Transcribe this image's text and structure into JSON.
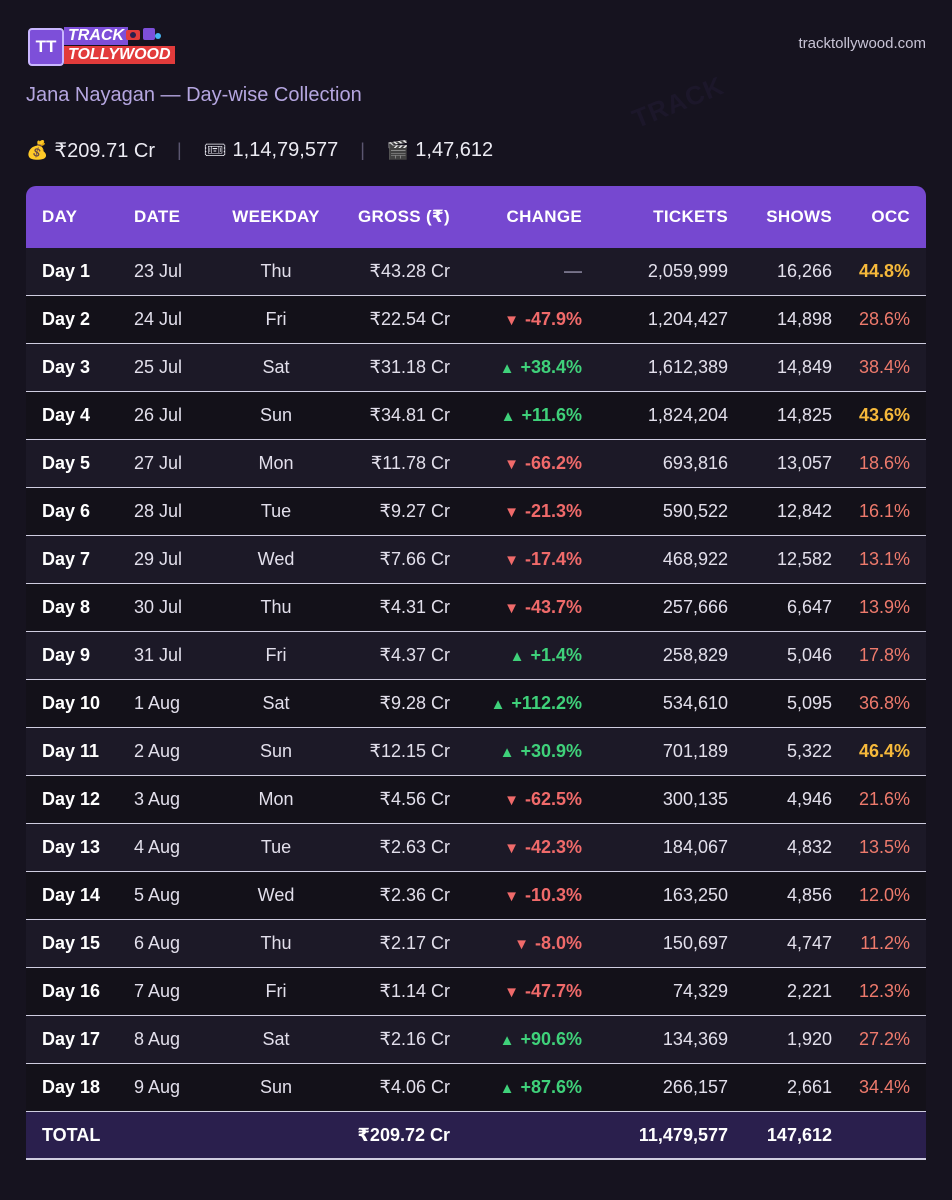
{
  "brand": {
    "logo_mark": "TT",
    "logo_top": "TRACK",
    "logo_bottom": "TOLLYWOOD",
    "url": "tracktollywood.com"
  },
  "subtitle": "Jana Nayagan — Day-wise Collection",
  "summary": {
    "gross_icon": "money-bag-icon",
    "gross": "₹209.71 Cr",
    "tickets_icon": "ticket-icon",
    "tickets": "1,14,79,577",
    "shows_icon": "clapperboard-icon",
    "shows": "1,47,612"
  },
  "colors": {
    "header_bg": "#7648d0",
    "positive": "#3fd17a",
    "negative": "#f06a6a",
    "occ_high": "#f6b93b",
    "occ_low": "#ee7a6c"
  },
  "table": {
    "headers": [
      "DAY",
      "DATE",
      "WEEKDAY",
      "GROSS (₹)",
      "CHANGE",
      "TICKETS",
      "SHOWS",
      "OCC"
    ],
    "rows": [
      {
        "day": "Day 1",
        "date": "23 Jul",
        "weekday": "Thu",
        "gross": "₹43.28 Cr",
        "change": "—",
        "dir": "flat",
        "tickets": "2,059,999",
        "shows": "16,266",
        "occ": "44.8%",
        "occ_level": "high"
      },
      {
        "day": "Day 2",
        "date": "24 Jul",
        "weekday": "Fri",
        "gross": "₹22.54 Cr",
        "change": "-47.9%",
        "dir": "down",
        "tickets": "1,204,427",
        "shows": "14,898",
        "occ": "28.6%",
        "occ_level": "low"
      },
      {
        "day": "Day 3",
        "date": "25 Jul",
        "weekday": "Sat",
        "gross": "₹31.18 Cr",
        "change": "+38.4%",
        "dir": "up",
        "tickets": "1,612,389",
        "shows": "14,849",
        "occ": "38.4%",
        "occ_level": "low"
      },
      {
        "day": "Day 4",
        "date": "26 Jul",
        "weekday": "Sun",
        "gross": "₹34.81 Cr",
        "change": "+11.6%",
        "dir": "up",
        "tickets": "1,824,204",
        "shows": "14,825",
        "occ": "43.6%",
        "occ_level": "high"
      },
      {
        "day": "Day 5",
        "date": "27 Jul",
        "weekday": "Mon",
        "gross": "₹11.78 Cr",
        "change": "-66.2%",
        "dir": "down",
        "tickets": "693,816",
        "shows": "13,057",
        "occ": "18.6%",
        "occ_level": "low"
      },
      {
        "day": "Day 6",
        "date": "28 Jul",
        "weekday": "Tue",
        "gross": "₹9.27 Cr",
        "change": "-21.3%",
        "dir": "down",
        "tickets": "590,522",
        "shows": "12,842",
        "occ": "16.1%",
        "occ_level": "low"
      },
      {
        "day": "Day 7",
        "date": "29 Jul",
        "weekday": "Wed",
        "gross": "₹7.66 Cr",
        "change": "-17.4%",
        "dir": "down",
        "tickets": "468,922",
        "shows": "12,582",
        "occ": "13.1%",
        "occ_level": "low"
      },
      {
        "day": "Day 8",
        "date": "30 Jul",
        "weekday": "Thu",
        "gross": "₹4.31 Cr",
        "change": "-43.7%",
        "dir": "down",
        "tickets": "257,666",
        "shows": "6,647",
        "occ": "13.9%",
        "occ_level": "low"
      },
      {
        "day": "Day 9",
        "date": "31 Jul",
        "weekday": "Fri",
        "gross": "₹4.37 Cr",
        "change": "+1.4%",
        "dir": "up",
        "tickets": "258,829",
        "shows": "5,046",
        "occ": "17.8%",
        "occ_level": "low"
      },
      {
        "day": "Day 10",
        "date": "1 Aug",
        "weekday": "Sat",
        "gross": "₹9.28 Cr",
        "change": "+112.2%",
        "dir": "up",
        "tickets": "534,610",
        "shows": "5,095",
        "occ": "36.8%",
        "occ_level": "low"
      },
      {
        "day": "Day 11",
        "date": "2 Aug",
        "weekday": "Sun",
        "gross": "₹12.15 Cr",
        "change": "+30.9%",
        "dir": "up",
        "tickets": "701,189",
        "shows": "5,322",
        "occ": "46.4%",
        "occ_level": "high"
      },
      {
        "day": "Day 12",
        "date": "3 Aug",
        "weekday": "Mon",
        "gross": "₹4.56 Cr",
        "change": "-62.5%",
        "dir": "down",
        "tickets": "300,135",
        "shows": "4,946",
        "occ": "21.6%",
        "occ_level": "low"
      },
      {
        "day": "Day 13",
        "date": "4 Aug",
        "weekday": "Tue",
        "gross": "₹2.63 Cr",
        "change": "-42.3%",
        "dir": "down",
        "tickets": "184,067",
        "shows": "4,832",
        "occ": "13.5%",
        "occ_level": "low"
      },
      {
        "day": "Day 14",
        "date": "5 Aug",
        "weekday": "Wed",
        "gross": "₹2.36 Cr",
        "change": "-10.3%",
        "dir": "down",
        "tickets": "163,250",
        "shows": "4,856",
        "occ": "12.0%",
        "occ_level": "low"
      },
      {
        "day": "Day 15",
        "date": "6 Aug",
        "weekday": "Thu",
        "gross": "₹2.17 Cr",
        "change": "-8.0%",
        "dir": "down",
        "tickets": "150,697",
        "shows": "4,747",
        "occ": "11.2%",
        "occ_level": "low"
      },
      {
        "day": "Day 16",
        "date": "7 Aug",
        "weekday": "Fri",
        "gross": "₹1.14 Cr",
        "change": "-47.7%",
        "dir": "down",
        "tickets": "74,329",
        "shows": "2,221",
        "occ": "12.3%",
        "occ_level": "low"
      },
      {
        "day": "Day 17",
        "date": "8 Aug",
        "weekday": "Sat",
        "gross": "₹2.16 Cr",
        "change": "+90.6%",
        "dir": "up",
        "tickets": "134,369",
        "shows": "1,920",
        "occ": "27.2%",
        "occ_level": "low"
      },
      {
        "day": "Day 18",
        "date": "9 Aug",
        "weekday": "Sun",
        "gross": "₹4.06 Cr",
        "change": "+87.6%",
        "dir": "up",
        "tickets": "266,157",
        "shows": "2,661",
        "occ": "34.4%",
        "occ_level": "low"
      }
    ],
    "total": {
      "label": "TOTAL",
      "gross": "₹209.72 Cr",
      "tickets": "11,479,577",
      "shows": "147,612"
    }
  }
}
